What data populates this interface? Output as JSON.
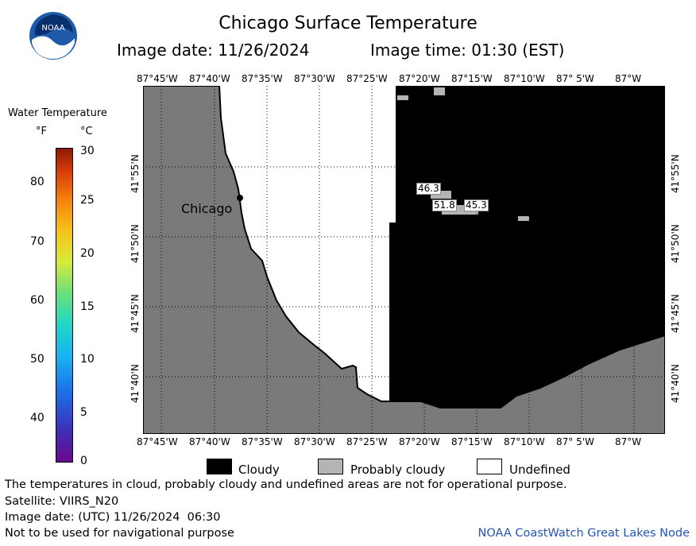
{
  "header": {
    "title": "Chicago Surface Temperature",
    "image_date": "Image date: 11/26/2024",
    "image_time": "Image time: 01:30 (EST)"
  },
  "logo": {
    "text": "NOAA"
  },
  "map": {
    "lon_labels_top": [
      "87°45'W",
      "87°40'W",
      "87°35'W",
      "87°30'W",
      "87°25'W",
      "87°20'W",
      "87°15'W",
      "87°10'W",
      "87° 5'W",
      "87°W"
    ],
    "lon_labels_bottom": [
      "87°45'W",
      "87°40'W",
      "87°35'W",
      "87°30'W",
      "87°25'W",
      "87°20'W",
      "87°15'W",
      "87°10'W",
      "87° 5'W",
      "87°W"
    ],
    "lat_labels": [
      "41°55'N",
      "41°50'N",
      "41°45'N",
      "41°40'N"
    ],
    "city_label": "Chicago",
    "temp_labels": [
      "46.3",
      "51.8",
      "45.3"
    ]
  },
  "colorbar": {
    "title": "Water Temperature",
    "unit_f": "°F",
    "unit_c": "°C",
    "ticks_f": [
      "80",
      "70",
      "60",
      "50",
      "40"
    ],
    "ticks_c": [
      "30",
      "25",
      "20",
      "15",
      "10",
      "5",
      "0"
    ]
  },
  "legend": {
    "items": [
      {
        "label": "Cloudy",
        "color": "#000000"
      },
      {
        "label": "Probably cloudy",
        "color": "#b4b4b4"
      },
      {
        "label": "Undefined",
        "color": "#ffffff"
      }
    ]
  },
  "footer": {
    "line1": "The temperatures in cloud, probably cloudy and undefined areas are not for operational purpose.",
    "line2": "Satellite: VIIRS_N20",
    "line3": "Image date: (UTC) 11/26/2024  06:30",
    "line4": "Not to be used for navigational purpose",
    "credit": "NOAA CoastWatch Great Lakes Node"
  },
  "colors": {
    "land": "#7a7a7a",
    "cloudy": "#000000",
    "probably_cloudy": "#b4b4b4",
    "undefined": "#ffffff",
    "credit": "#2255bb"
  }
}
